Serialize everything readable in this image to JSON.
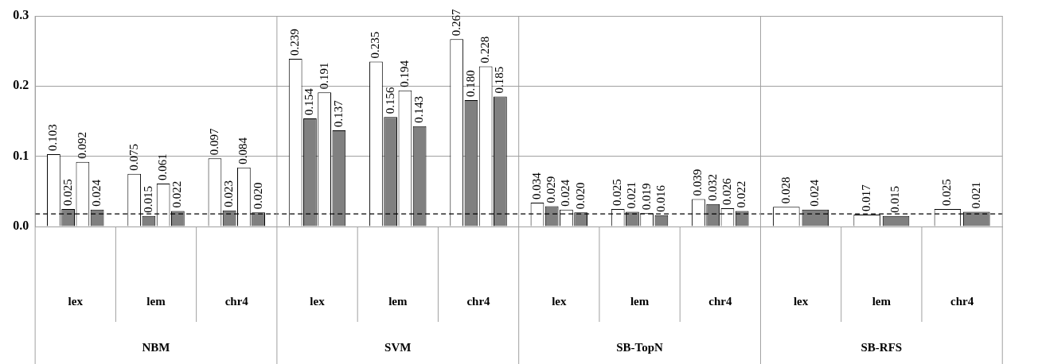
{
  "chart_data": {
    "type": "bar",
    "categories": [
      "lex",
      "lem",
      "chr4",
      "lex",
      "lem",
      "chr4",
      "lex",
      "lem",
      "chr4",
      "lex",
      "lem",
      "chr4"
    ],
    "series": [
      {
        "color": "#ffffff",
        "values": [
          0.103,
          0.075,
          0.097,
          0.239,
          0.235,
          0.267,
          0.034,
          0.025,
          0.039,
          0.028,
          0.017,
          0.025
        ],
        "value_labels": [
          "0.103",
          "0.075",
          "0.097",
          "0.239",
          "0.235",
          "0.267",
          "0.034",
          "0.025",
          "0.039",
          "0.028",
          "0.017",
          "0.025"
        ]
      },
      {
        "color": "#808080",
        "values": [
          0.025,
          0.015,
          0.023,
          0.154,
          0.156,
          0.18,
          0.029,
          0.021,
          0.032,
          0.024,
          0.015,
          0.021
        ],
        "value_labels": [
          "0.025",
          "0.015",
          "0.023",
          "0.154",
          "0.156",
          "0.180",
          "0.029",
          "0.021",
          "0.032",
          "0.024",
          "0.015",
          "0.021"
        ]
      },
      {
        "color": "#ffffff",
        "values": [
          0.092,
          0.061,
          0.084,
          0.191,
          0.194,
          0.228,
          0.024,
          0.019,
          0.026,
          null,
          null,
          null
        ],
        "value_labels": [
          "0.092",
          "0.061",
          "0.084",
          "0.191",
          "0.194",
          "0.228",
          "0.024",
          "0.019",
          "0.026",
          null,
          null,
          null
        ]
      },
      {
        "color": "#808080",
        "values": [
          0.024,
          0.022,
          0.02,
          0.137,
          0.143,
          0.185,
          0.02,
          0.016,
          0.022,
          null,
          null,
          null
        ],
        "value_labels": [
          "0.024",
          "0.022",
          "0.020",
          "0.137",
          "0.143",
          "0.185",
          "0.020",
          "0.016",
          "0.022",
          null,
          null,
          null
        ]
      }
    ],
    "annotations": [
      "NBM",
      "SVM",
      "SB-TopN",
      "SB-RFS"
    ],
    "ylim": [
      0,
      0.3
    ],
    "yticks": [
      {
        "value": 0,
        "label": "0.0"
      },
      {
        "value": 0.1,
        "label": "0.1"
      },
      {
        "value": 0.2,
        "label": "0.2"
      },
      {
        "value": 0.3,
        "label": "0.3"
      }
    ],
    "grid": "y",
    "ref_lines": [
      {
        "axis": "y",
        "value": 0.018,
        "color": "#000000",
        "line_style": "dashed"
      }
    ]
  }
}
